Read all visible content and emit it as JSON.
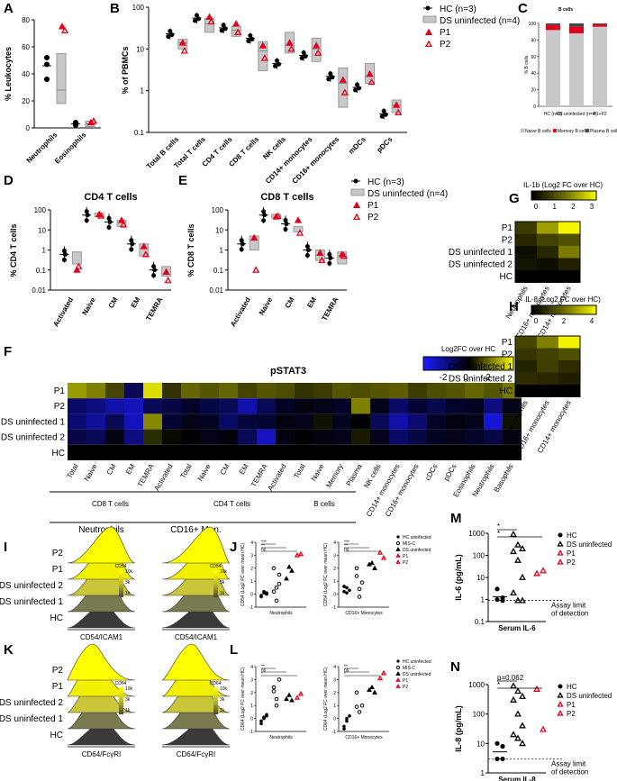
{
  "panel_labels": {
    "A": "A",
    "B": "B",
    "C": "C",
    "D": "D",
    "E": "E",
    "F": "F",
    "G": "G",
    "H": "H",
    "I": "I",
    "J": "J",
    "K": "K",
    "L": "L",
    "M": "M",
    "N": "N"
  },
  "legend_main": {
    "hc": "HC (n=3)",
    "ds": "DS uninfected (n=4)",
    "p1": "P1",
    "p2": "P2"
  },
  "colors": {
    "hc": "#000000",
    "ds": "#c8c8c8",
    "patient": "#e3001b",
    "heat_low": "#1a1aff",
    "heat_mid": "#000000",
    "heat_high": "#ffff00"
  },
  "chart_data": [
    {
      "id": "A",
      "type": "scatter",
      "title": "",
      "ylabel": "% Leukocytes",
      "ylim": [
        0,
        80
      ],
      "yticks": [
        "0",
        "20",
        "40",
        "60",
        "80"
      ],
      "categories": [
        "Neutrophils",
        "Eosinophils"
      ],
      "hc_points": [
        [
          52,
          36,
          47
        ],
        [
          3,
          2,
          4
        ]
      ],
      "hc_mean": [
        46,
        3
      ],
      "ds_box": [
        [
          18,
          28,
          55
        ],
        [
          1,
          3,
          5
        ]
      ],
      "p1": [
        75,
        4
      ],
      "p2": [
        72,
        5
      ]
    },
    {
      "id": "B",
      "type": "scatter",
      "title": "",
      "ylabel": "% of PBMCs",
      "yscale": "log",
      "ylim": [
        0.1,
        100
      ],
      "yticks": [
        "0.1",
        "1",
        "10",
        "100"
      ],
      "categories": [
        "Total B cells",
        "Total T cells",
        "CD4 T cells",
        "CD8 T cells",
        "NK cells",
        "CD14+ monocytes",
        "CD16+ monocytes",
        "mDCs",
        "pDCs"
      ],
      "hc_mean": [
        23,
        55,
        32,
        18,
        4.5,
        7,
        2.2,
        1.2,
        0.28
      ],
      "ds_box": [
        [
          10,
          14,
          17
        ],
        [
          25,
          40,
          55
        ],
        [
          20,
          28,
          35
        ],
        [
          3,
          9,
          15
        ],
        [
          8,
          12,
          25
        ],
        [
          5,
          10,
          18
        ],
        [
          0.4,
          1.5,
          3.5
        ],
        [
          1.5,
          2.2,
          4.5
        ],
        [
          0.3,
          0.45,
          0.6
        ]
      ],
      "p1": [
        14,
        58,
        40,
        12,
        14,
        12,
        1.8,
        2.5,
        0.45
      ],
      "p2": [
        9,
        45,
        25,
        6,
        10,
        8,
        0.9,
        1.6,
        0.3
      ]
    },
    {
      "id": "C",
      "type": "bar",
      "title": "B cells",
      "ylabel": "% B cells",
      "ylim": [
        0,
        100
      ],
      "yticks": [
        "0",
        "20",
        "40",
        "60",
        "80",
        "100"
      ],
      "categories": [
        "HC (n=3)",
        "DS uninfected (n=4)",
        "P1+P2"
      ],
      "series": [
        {
          "name": "Naive B cells",
          "values": [
            92,
            88,
            96
          ]
        },
        {
          "name": "Memory B cells",
          "values": [
            6,
            8,
            3
          ]
        },
        {
          "name": "Plasma B cells",
          "values": [
            2,
            4,
            1
          ]
        }
      ]
    },
    {
      "id": "D",
      "type": "scatter",
      "title": "CD4 T cells",
      "ylabel": "% CD4 T cells",
      "yscale": "log",
      "ylim": [
        0.01,
        100
      ],
      "yticks": [
        "0.01",
        "0.1",
        "1",
        "10",
        "100"
      ],
      "categories": [
        "Activated",
        "Naive",
        "CM",
        "EM",
        "TEMRA"
      ],
      "hc_mean": [
        0.6,
        55,
        25,
        2,
        0.1
      ],
      "ds_box": [
        [
          0.2,
          0.4,
          0.8
        ],
        [
          45,
          55,
          70
        ],
        [
          15,
          25,
          30
        ],
        [
          0.5,
          1,
          2
        ],
        [
          0.05,
          0.1,
          0.15
        ]
      ],
      "p1": [
        0.1,
        60,
        30,
        1.5,
        0.08
      ],
      "p2": [
        0.15,
        50,
        18,
        0.6,
        0.03
      ]
    },
    {
      "id": "E",
      "type": "scatter",
      "title": "CD8 T cells",
      "ylabel": "% CD8 T cells",
      "yscale": "log",
      "ylim": [
        0.01,
        100
      ],
      "yticks": [
        "0.01",
        "0.1",
        "1",
        "10",
        "100"
      ],
      "categories": [
        "Activated",
        "Naive",
        "CM",
        "EM",
        "TEMRA"
      ],
      "hc_mean": [
        2,
        55,
        20,
        1,
        0.4
      ],
      "ds_box": [
        [
          1,
          2,
          5
        ],
        [
          40,
          50,
          60
        ],
        [
          8,
          12,
          15
        ],
        [
          0.3,
          0.5,
          1
        ],
        [
          0.2,
          0.4,
          0.8
        ]
      ],
      "p1": [
        4,
        45,
        30,
        0.7,
        0.6
      ],
      "p2": [
        0.1,
        48,
        7,
        0.3,
        0.5
      ]
    },
    {
      "id": "F",
      "type": "heatmap",
      "title": "pSTAT3",
      "legend_title": "Log2FC over HC",
      "legend_ticks": [
        "-2",
        "0",
        "2"
      ],
      "rows": [
        "P1",
        "P2",
        "DS uninfected 1",
        "DS uninfected 2",
        "HC"
      ],
      "columns": [
        "Total",
        "Naive",
        "CM",
        "EM",
        "TEMRA",
        "Activated",
        "Total",
        "Naive",
        "CM",
        "EM",
        "TEMRA",
        "Activated",
        "Total",
        "Naive",
        "Memory",
        "Plasma",
        "NK cells",
        "CD14+ monocytes",
        "CD16+ monocytes",
        "cDCs",
        "pDCs",
        "Eosinophils",
        "Neutrophils",
        "Basophils"
      ],
      "groups": [
        "CD8 T cells",
        "CD4 T cells",
        "B cells"
      ],
      "values": [
        [
          1.8,
          1.5,
          0.8,
          -1.0,
          2.6,
          0.6,
          1.2,
          1.0,
          1.2,
          0.8,
          1.0,
          0.9,
          0.6,
          0.7,
          1.0,
          0.9,
          1.0,
          1.1,
          0.7,
          0.9,
          1.0,
          1.2,
          1.0,
          1.4
        ],
        [
          -1.2,
          -1.5,
          -2.0,
          -2.2,
          -1.0,
          -0.8,
          -0.5,
          -0.8,
          -1.0,
          -2.0,
          -1.0,
          -0.4,
          -0.2,
          -0.3,
          -0.5,
          1.5,
          -0.3,
          -1.2,
          -0.6,
          -0.9,
          -0.5,
          -0.4,
          -1.5,
          -0.3
        ],
        [
          -1.3,
          -1.8,
          -1.0,
          -2.2,
          1.6,
          -0.6,
          -0.3,
          -0.4,
          -1.2,
          -0.7,
          -0.6,
          -0.2,
          -0.3,
          0.2,
          -0.4,
          0.0,
          -1.0,
          -2.0,
          -1.3,
          -0.5,
          -0.2,
          -0.3,
          -2.5,
          0.2
        ],
        [
          -0.8,
          -1.0,
          -0.2,
          -1.5,
          0.5,
          0.1,
          0.0,
          -0.3,
          -0.1,
          -1.0,
          -2.3,
          -0.2,
          0.0,
          -0.2,
          -0.3,
          0.3,
          -0.3,
          -1.2,
          -0.8,
          -0.4,
          -0.3,
          -0.5,
          -0.8,
          -0.2
        ],
        [
          0,
          0,
          0,
          0,
          0,
          0,
          0,
          0,
          0,
          0,
          0,
          0,
          0,
          0,
          0,
          0,
          0,
          0,
          0,
          0,
          0,
          0,
          0,
          0
        ]
      ]
    },
    {
      "id": "G",
      "type": "heatmap",
      "title": "IL-1b (Log2 FC over HC)",
      "legend_ticks": [
        "0",
        "1",
        "2",
        "3"
      ],
      "rows": [
        "P1",
        "P2",
        "DS uninfected 1",
        "DS uninfected 2",
        "HC"
      ],
      "columns": [
        "Neutrophils",
        "CD16+ monocytes",
        "CD14+ monocytes"
      ],
      "values": [
        [
          0.9,
          2.2,
          3.2
        ],
        [
          0.6,
          1.0,
          1.2
        ],
        [
          0.2,
          0.6,
          1.8
        ],
        [
          0.3,
          0.2,
          0.5
        ],
        [
          0,
          0,
          0
        ]
      ]
    },
    {
      "id": "H",
      "type": "heatmap",
      "title": "IL-8 (Log2 FC over HC)",
      "legend_ticks": [
        "0",
        "2",
        "4"
      ],
      "rows": [
        "P1",
        "P2",
        "DS uninfected 1",
        "DS uninfected 2",
        "HC"
      ],
      "columns": [
        "Neutrophils",
        "CD16+ monocytes",
        "CD14+ monocytes"
      ],
      "values": [
        [
          1.6,
          2.8,
          4.8
        ],
        [
          1.2,
          1.5,
          1.8
        ],
        [
          0.8,
          1.4,
          1.0
        ],
        [
          1.0,
          0.9,
          0.7
        ],
        [
          0,
          0,
          0
        ]
      ]
    },
    {
      "id": "I",
      "type": "area",
      "titles": [
        "Neutrophils",
        "CD16+ Mon."
      ],
      "xlabels": [
        "CD54/ICAM1",
        "CD54/ICAM1"
      ],
      "rows": [
        "P2",
        "P1",
        "DS uninfected 2",
        "DS uninfected 1",
        "HC"
      ],
      "scale_title": "CD54",
      "scale_ticks": [
        "1k",
        "3k",
        "10k"
      ]
    },
    {
      "id": "J",
      "type": "scatter",
      "ylabels": [
        "CD54 (Log2 FC over mean HC)",
        "CD54 (Log2 FC over mean HC)"
      ],
      "xlabels": [
        "Neutrophils",
        "CD16+ Monocytes"
      ],
      "ylim": [
        -1,
        4
      ],
      "yticks": [
        "-1",
        "0",
        "1",
        "2",
        "3",
        "4"
      ],
      "legend": [
        "HC uninfected",
        "MIS-C",
        "DS uninfected",
        "P1",
        "P2"
      ],
      "sig": [
        "***",
        "**",
        "ns"
      ],
      "groups": [
        {
          "hc": [
            -0.1,
            0.1,
            0.0,
            -0.2,
            0.2,
            0.1
          ],
          "misc": [
            0.2,
            0.5,
            1.5,
            2.0,
            -0.5,
            0.8
          ],
          "ds": [
            1.2,
            2.1,
            1.8
          ],
          "p1": 3.0,
          "p2": 3.1
        },
        {
          "hc": [
            0.2,
            0.5,
            0.3,
            0.6,
            0.1
          ],
          "misc": [
            2.0,
            -0.2,
            0.9,
            1.4,
            0.4
          ],
          "ds": [
            2.3,
            2.4,
            2.0
          ],
          "p1": 3.2,
          "p2": 2.8
        }
      ]
    },
    {
      "id": "K",
      "type": "area",
      "titles": [
        "",
        ""
      ],
      "xlabels": [
        "CD64/FcγRI",
        "CD64/FcγRI"
      ],
      "rows": [
        "P2",
        "P1",
        "DS uninfected 2",
        "DS uninfected 1",
        "HC"
      ],
      "scale_title": "CD64",
      "scale_ticks": [
        "1k",
        "3k",
        "10k"
      ]
    },
    {
      "id": "L",
      "type": "scatter",
      "ylabels": [
        "CD64 (Log2 FC over mean HC)",
        "CD64 (Log2 FC over mean HC)"
      ],
      "xlabels": [
        "Neutrophils",
        "CD16+ Monocytes"
      ],
      "ylim": [
        -1,
        4
      ],
      "yticks": [
        "-1",
        "0",
        "1",
        "2",
        "3",
        "4"
      ],
      "legend": [
        "HC uninfected",
        "MIS-C",
        "DS uninfected",
        "P1",
        "P2"
      ],
      "sig": [
        "**",
        "ns",
        "*"
      ],
      "groups": [
        {
          "hc": [
            -0.2,
            0.1,
            0.3,
            -0.4,
            0.0,
            0.2
          ],
          "misc": [
            2.4,
            1.0,
            3.0,
            2.1,
            1.5
          ],
          "ds": [
            1.5,
            1.8,
            1.4
          ],
          "p1": 1.6,
          "p2": 1.9
        },
        {
          "hc": [
            -0.6,
            -0.2,
            0.2,
            -0.8,
            0.0
          ],
          "misc": [
            2.0,
            0.5,
            1.0,
            0.9
          ],
          "ds": [
            2.2,
            2.4,
            2.0
          ],
          "p1": 3.1,
          "p2": 3.5
        }
      ]
    },
    {
      "id": "M",
      "type": "scatter",
      "ylabel": "IL-6 (pg/mL)",
      "yscale": "log",
      "ylim": [
        0.1,
        1000
      ],
      "yticks": [
        "0.1",
        "1",
        "10",
        "100",
        "1000"
      ],
      "xlabel": "Serum IL-6",
      "legend": [
        "HC",
        "DS uninfected",
        "P1",
        "P2"
      ],
      "detection_label": "Assay limit\nof detection",
      "detection": 0.9,
      "hc": [
        1.0,
        1.2,
        3.0,
        0.9
      ],
      "ds": [
        900,
        300,
        200,
        150,
        60,
        10,
        2,
        0.9,
        0.9
      ],
      "p1": 15,
      "p2": 20,
      "sig": [
        "*",
        "*"
      ]
    },
    {
      "id": "N",
      "type": "scatter",
      "ylabel": "IL-8 (pg/mL)",
      "yscale": "log",
      "ylim": [
        1,
        1000
      ],
      "yticks": [
        "1",
        "10",
        "100",
        "1000"
      ],
      "xlabel": "Serum IL-8",
      "legend": [
        "HC",
        "DS uninfected",
        "P1",
        "P2"
      ],
      "detection_label": "Assay limit\nof detection",
      "detection": 3,
      "hc": [
        10,
        3,
        3,
        8
      ],
      "ds": [
        900,
        600,
        400,
        300,
        100,
        40,
        20,
        15,
        10
      ],
      "p1": 700,
      "p2": 30,
      "sig": [
        "p=0.062",
        "*"
      ]
    }
  ]
}
